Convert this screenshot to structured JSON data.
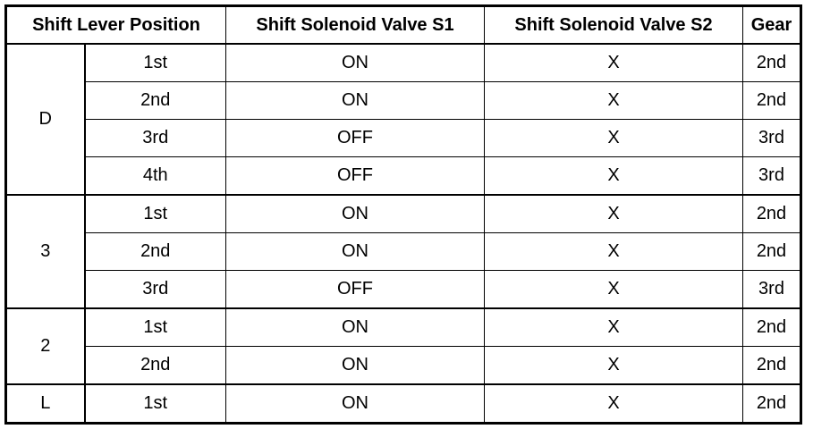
{
  "table": {
    "headers": [
      "Shift Lever Position",
      "Shift Solenoid Valve S1",
      "Shift Solenoid Valve S2",
      "Gear"
    ],
    "groups": [
      {
        "position": "D",
        "rows": [
          {
            "range": "1st",
            "s1": "ON",
            "s2": "X",
            "gear": "2nd"
          },
          {
            "range": "2nd",
            "s1": "ON",
            "s2": "X",
            "gear": "2nd"
          },
          {
            "range": "3rd",
            "s1": "OFF",
            "s2": "X",
            "gear": "3rd"
          },
          {
            "range": "4th",
            "s1": "OFF",
            "s2": "X",
            "gear": "3rd"
          }
        ]
      },
      {
        "position": "3",
        "rows": [
          {
            "range": "1st",
            "s1": "ON",
            "s2": "X",
            "gear": "2nd"
          },
          {
            "range": "2nd",
            "s1": "ON",
            "s2": "X",
            "gear": "2nd"
          },
          {
            "range": "3rd",
            "s1": "OFF",
            "s2": "X",
            "gear": "3rd"
          }
        ]
      },
      {
        "position": "2",
        "rows": [
          {
            "range": "1st",
            "s1": "ON",
            "s2": "X",
            "gear": "2nd"
          },
          {
            "range": "2nd",
            "s1": "ON",
            "s2": "X",
            "gear": "2nd"
          }
        ]
      },
      {
        "position": "L",
        "rows": [
          {
            "range": "1st",
            "s1": "ON",
            "s2": "X",
            "gear": "2nd"
          }
        ]
      }
    ]
  }
}
